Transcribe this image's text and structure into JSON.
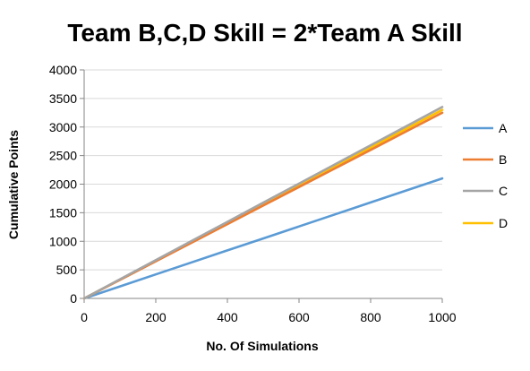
{
  "chart_data": {
    "type": "line",
    "title": "Team B,C,D Skill = 2*Team A Skill",
    "xlabel": "No. Of Simulations",
    "ylabel": "Cumulative Points",
    "xlim": [
      0,
      1000
    ],
    "ylim": [
      0,
      4000
    ],
    "xticks": [
      0,
      200,
      400,
      600,
      800,
      1000
    ],
    "yticks": [
      0,
      500,
      1000,
      1500,
      2000,
      2500,
      3000,
      3500,
      4000
    ],
    "grid": "horizontal",
    "legend_position": "right",
    "series": [
      {
        "name": "A",
        "color": "#5B9BD5",
        "x": [
          0,
          100,
          200,
          300,
          400,
          500,
          600,
          700,
          800,
          900,
          1000
        ],
        "y": [
          0,
          210,
          420,
          630,
          840,
          1050,
          1260,
          1470,
          1680,
          1890,
          2100
        ]
      },
      {
        "name": "B",
        "color": "#ED7D31",
        "x": [
          0,
          100,
          200,
          300,
          400,
          500,
          600,
          700,
          800,
          900,
          1000
        ],
        "y": [
          0,
          325,
          650,
          975,
          1300,
          1625,
          1950,
          2275,
          2600,
          2925,
          3250
        ]
      },
      {
        "name": "C",
        "color": "#A5A5A5",
        "x": [
          0,
          100,
          200,
          300,
          400,
          500,
          600,
          700,
          800,
          900,
          1000
        ],
        "y": [
          0,
          335,
          670,
          1005,
          1340,
          1675,
          2010,
          2345,
          2680,
          3015,
          3350
        ]
      },
      {
        "name": "D",
        "color": "#FFC000",
        "x": [
          0,
          100,
          200,
          300,
          400,
          500,
          600,
          700,
          800,
          900,
          1000
        ],
        "y": [
          0,
          330,
          660,
          990,
          1320,
          1650,
          1980,
          2310,
          2640,
          2970,
          3300
        ]
      }
    ]
  }
}
